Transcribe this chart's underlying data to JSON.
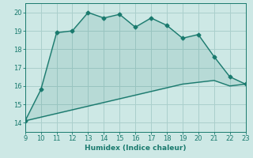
{
  "xlabel": "Humidex (Indice chaleur)",
  "ylabel": "",
  "x_upper_line": [
    9,
    10,
    11,
    12,
    13,
    14,
    15,
    16,
    17,
    18,
    19,
    20,
    21,
    22,
    23
  ],
  "y_upper_line": [
    14.1,
    15.8,
    18.9,
    19.0,
    20.0,
    19.7,
    19.9,
    19.2,
    19.7,
    19.3,
    18.6,
    18.8,
    17.6,
    16.5,
    16.1
  ],
  "x_lower_line": [
    9,
    10,
    11,
    12,
    13,
    14,
    15,
    16,
    17,
    18,
    19,
    20,
    21,
    22,
    23
  ],
  "y_lower_line": [
    14.1,
    14.3,
    14.5,
    14.7,
    14.9,
    15.1,
    15.3,
    15.5,
    15.7,
    15.9,
    16.1,
    16.2,
    16.3,
    16.0,
    16.1
  ],
  "line_color": "#1a7a6e",
  "fill_color": "#1a7a6e",
  "bg_color": "#cde8e5",
  "grid_color": "#aacfcc",
  "tick_color": "#1a7a6e",
  "label_color": "#1a7a6e",
  "xlim": [
    9,
    23
  ],
  "ylim": [
    13.5,
    20.5
  ],
  "xticks": [
    9,
    10,
    11,
    12,
    13,
    14,
    15,
    16,
    17,
    18,
    19,
    20,
    21,
    22,
    23
  ],
  "yticks": [
    14,
    15,
    16,
    17,
    18,
    19,
    20
  ],
  "marker": "D",
  "markersize": 2.5,
  "linewidth": 1.0
}
